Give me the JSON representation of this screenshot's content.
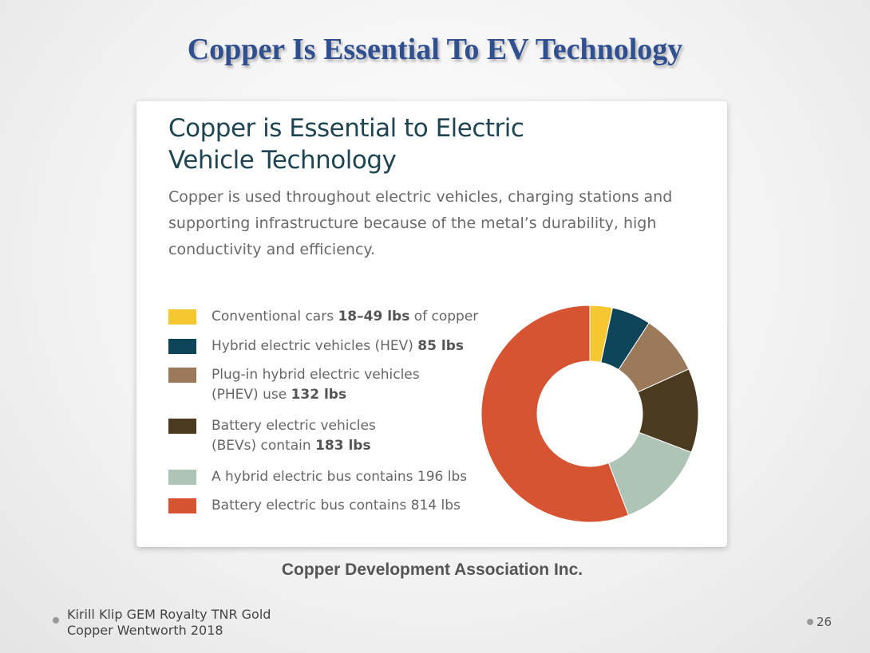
{
  "slide": {
    "title": "Copper Is Essential To EV Technology",
    "source": "Copper Development Association Inc.",
    "footer_line1": "Kirill Klip GEM Royalty TNR Gold",
    "footer_line2": "Copper Wentworth 2018",
    "page_number": "26"
  },
  "card": {
    "title_line1": "Copper is Essential to Electric",
    "title_line2": "Vehicle Technology",
    "desc_line1": "Copper is used throughout electric vehicles, charging stations and",
    "desc_line2": "supporting infrastructure because of the metal’s durability, high",
    "desc_line3": "conductivity and efficiency."
  },
  "legend": [
    {
      "parts": [
        {
          "t": "Conventional cars "
        },
        {
          "t": "18–49 lbs",
          "b": true
        },
        {
          "t": " of copper"
        }
      ]
    },
    {
      "parts": [
        {
          "t": "Hybrid electric vehicles (HEV) "
        },
        {
          "t": "85 lbs",
          "b": true
        }
      ]
    },
    {
      "parts": [
        {
          "t": "Plug-in hybrid electric vehicles"
        },
        {
          "br": true
        },
        {
          "t": "(PHEV) use "
        },
        {
          "t": "132 lbs",
          "b": true
        }
      ]
    },
    {
      "parts": [
        {
          "t": "Battery electric vehicles"
        },
        {
          "br": true
        },
        {
          "t": "(BEVs) contain "
        },
        {
          "t": "183 lbs",
          "b": true
        }
      ]
    },
    {
      "parts": [
        {
          "t": "A hybrid electric bus contains 196 lbs"
        }
      ]
    },
    {
      "parts": [
        {
          "t": "Battery electric bus contains 814 lbs"
        }
      ]
    }
  ],
  "chart_data": {
    "type": "pie",
    "style": "donut",
    "unit": "lbs",
    "start": "top, clockwise",
    "categories": [
      "Conventional cars",
      "Hybrid electric vehicles (HEV)",
      "Plug-in hybrid electric vehicles (PHEV)",
      "Battery electric vehicles (BEVs)",
      "A hybrid electric bus",
      "Battery electric bus"
    ],
    "values": [
      49,
      85,
      132,
      183,
      196,
      814
    ],
    "colors": [
      "#f5c832",
      "#0d4458",
      "#9b7a5c",
      "#4a3a20",
      "#aec4b6",
      "#d65431"
    ],
    "legend_position": "left"
  }
}
